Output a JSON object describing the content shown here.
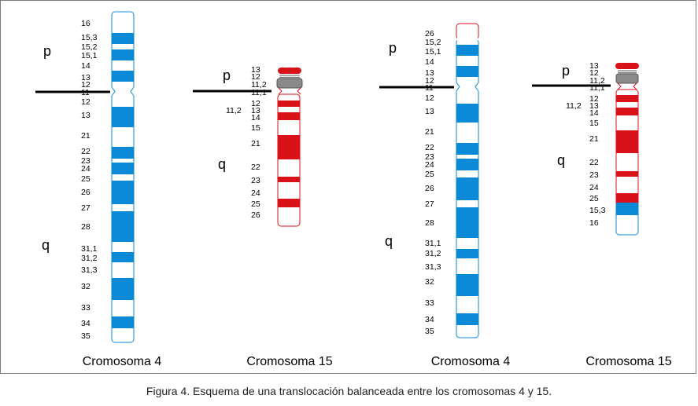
{
  "colors": {
    "chr4": "#0a8ad6",
    "chr15": "#d81218",
    "centromere": "#7a7a7a",
    "ink": "#000000"
  },
  "chromosomes": [
    {
      "name": "Cromosoma 4",
      "color": "#0a8ad6",
      "arm_p": "p",
      "arm_q": "q",
      "bands": [
        "16",
        "15,3",
        "15,2",
        "15,1",
        "14",
        "13",
        "12",
        "11",
        "12",
        "13",
        "21",
        "22",
        "23",
        "24",
        "25",
        "26",
        "27",
        "28",
        "31,1",
        "31,2",
        "31,3",
        "32",
        "33",
        "34",
        "35"
      ]
    },
    {
      "name": "Cromosoma 15",
      "color": "#d81218",
      "arm_p": "p",
      "arm_q": "q",
      "bands": [
        "13",
        "12",
        "11,2",
        "11,1",
        "12",
        "11,2",
        "13",
        "14",
        "15",
        "21",
        "22",
        "23",
        "24",
        "25",
        "26"
      ]
    },
    {
      "name": "Cromosoma 4",
      "color": "#0a8ad6",
      "arm_p": "p",
      "arm_q": "q",
      "bands": [
        "26",
        "15,2",
        "15,1",
        "14",
        "13",
        "12",
        "11",
        "12",
        "13",
        "21",
        "22",
        "23",
        "24",
        "25",
        "26",
        "27",
        "28",
        "31,1",
        "31,2",
        "31,3",
        "32",
        "33",
        "34",
        "35"
      ]
    },
    {
      "name": "Cromosoma 15",
      "color": "#d81218",
      "arm_p": "p",
      "arm_q": "q",
      "bands": [
        "13",
        "12",
        "11,2",
        "11,1",
        "12",
        "11,2",
        "13",
        "14",
        "15",
        "21",
        "22",
        "23",
        "24",
        "25",
        "15,3",
        "16"
      ]
    }
  ],
  "caption": "Figura 4. Esquema de una translocación balanceada entre los cromosomas 4 y 15."
}
